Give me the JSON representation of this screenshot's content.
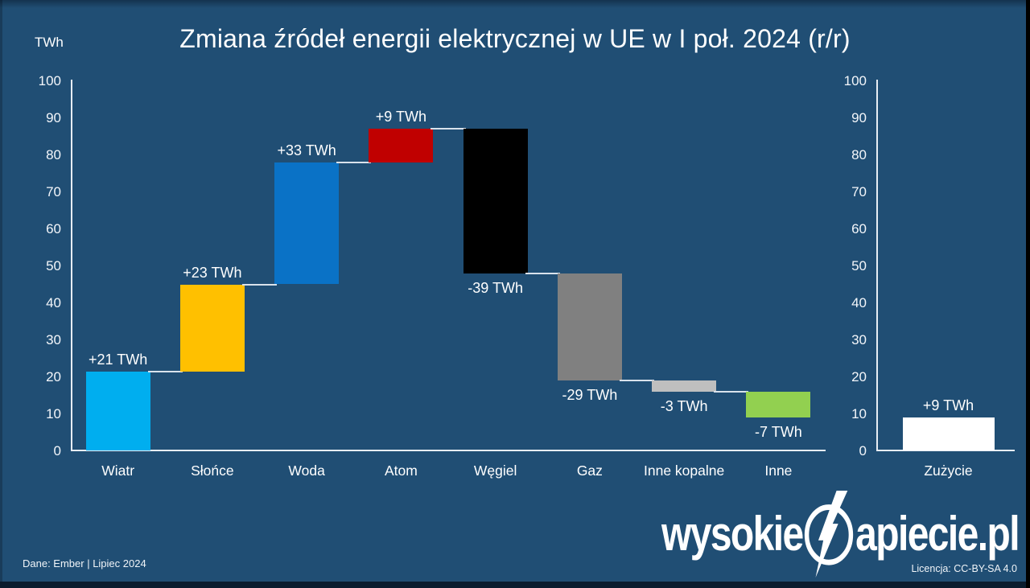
{
  "title": "Zmiana źródeł energii elektrycznej w UE w I poł. 2024 (r/r)",
  "y_axis_unit": "TWh",
  "footer": {
    "source_note": "Dane: Ember  |  Lipiec 2024",
    "license_note": "Licencja: CC-BY-SA 4.0",
    "logo_prefix": "wysokie",
    "logo_suffix": "apiecie.pl",
    "logo_icon": "lightning-bolt-n-icon"
  },
  "colors": {
    "background": "#204E74",
    "axis": "#E7EDF4",
    "connector": "#D9E2EC",
    "text": "#FFFFFF"
  },
  "chart_data": {
    "type": "waterfall",
    "title": "Zmiana źródeł energii elektrycznej w UE w I poł. 2024 (r/r)",
    "ylabel": "TWh",
    "ylim": [
      0,
      100
    ],
    "y_ticks": [
      0,
      10,
      20,
      30,
      40,
      50,
      60,
      70,
      80,
      90,
      100
    ],
    "grid": false,
    "legend": false,
    "axes": "dual (left for sources waterfall, right for consumption total)",
    "categories": [
      "Wiatr",
      "Słońce",
      "Woda",
      "Atom",
      "Węgiel",
      "Gaz",
      "Inne kopalne",
      "Inne"
    ],
    "bars": [
      {
        "label": "Wiatr",
        "value": 21,
        "value_label": "+21 TWh",
        "start": 0,
        "end": 21.5,
        "color": "#00AEEF"
      },
      {
        "label": "Słońce",
        "value": 23,
        "value_label": "+23 TWh",
        "start": 21.5,
        "end": 45,
        "color": "#FFC000"
      },
      {
        "label": "Woda",
        "value": 33,
        "value_label": "+33 TWh",
        "start": 45,
        "end": 78,
        "color": "#0A72C6"
      },
      {
        "label": "Atom",
        "value": 9,
        "value_label": "+9 TWh",
        "start": 78,
        "end": 87,
        "color": "#C00000"
      },
      {
        "label": "Węgiel",
        "value": -39,
        "value_label": "-39 TWh",
        "start": 87,
        "end": 48,
        "color": "#000000"
      },
      {
        "label": "Gaz",
        "value": -29,
        "value_label": "-29 TWh",
        "start": 48,
        "end": 19,
        "color": "#808080"
      },
      {
        "label": "Inne kopalne",
        "value": -3,
        "value_label": "-3 TWh",
        "start": 19,
        "end": 16,
        "color": "#BFBFBF"
      },
      {
        "label": "Inne",
        "value": -7,
        "value_label": "-7 TWh",
        "start": 16,
        "end": 9,
        "color": "#92D050"
      }
    ],
    "total_bar": {
      "label": "Zużycie",
      "value": 9,
      "value_label": "+9 TWh",
      "start": 0,
      "end": 9,
      "color": "#FFFFFF"
    }
  }
}
